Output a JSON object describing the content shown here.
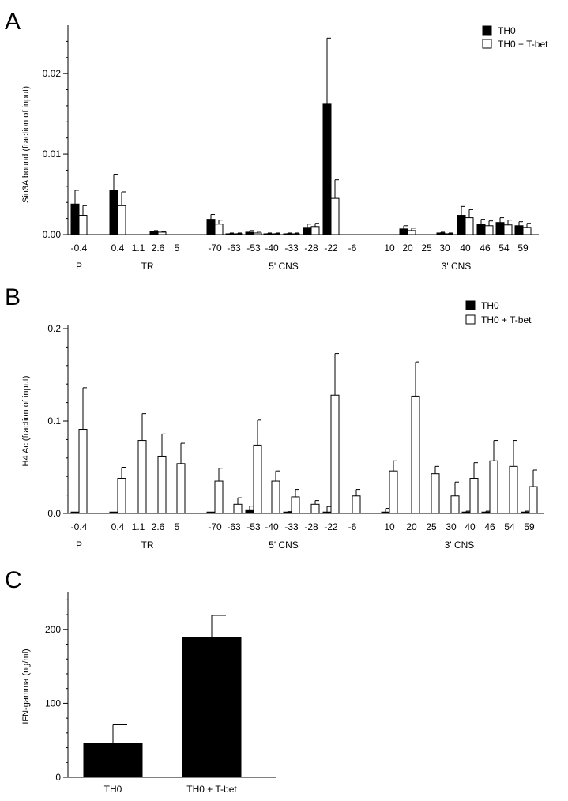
{
  "chart_data": [
    {
      "panel": "A",
      "type": "bar",
      "ylabel": "Sin3A bound (fraction of input)",
      "ylim": [
        0,
        0.026
      ],
      "yticks": [
        0.0,
        0.01,
        0.02
      ],
      "ytick_labels": [
        "0.00",
        "0.01",
        "0.02"
      ],
      "legend_position": "top-right",
      "series": [
        {
          "name": "TH0",
          "color": "#000000"
        },
        {
          "name": "TH0 + T-bet",
          "color": "#ffffff"
        }
      ],
      "categories": [
        "-0.4",
        "0.4",
        "1.1",
        "2.6",
        "5",
        "-70",
        "-63",
        "-53",
        "-40",
        "-33",
        "-28",
        "-22",
        "-6",
        "10",
        "20",
        "25",
        "30",
        "40",
        "46",
        "54",
        "59"
      ],
      "values": [
        [
          0.0038,
          0.0024
        ],
        [
          0.0055,
          0.0036
        ],
        null,
        [
          0.0004,
          0.0003
        ],
        null,
        [
          0.0019,
          0.0013
        ],
        [
          0.0001,
          0.0001
        ],
        [
          0.0003,
          0.0002
        ],
        [
          0.0001,
          0.0001
        ],
        [
          0.0001,
          0.0001
        ],
        [
          0.0009,
          0.001
        ],
        [
          0.0162,
          0.0045
        ],
        null,
        null,
        [
          0.0007,
          0.0005
        ],
        null,
        [
          0.0002,
          0.0001
        ],
        [
          0.0024,
          0.0021
        ],
        [
          0.0013,
          0.0011
        ],
        [
          0.0015,
          0.0012
        ],
        [
          0.0011,
          0.0009
        ]
      ],
      "errors": [
        [
          0.0017,
          0.0012
        ],
        [
          0.002,
          0.0017
        ],
        null,
        [
          0.0001,
          0.0001
        ],
        null,
        [
          0.0006,
          0.0005
        ],
        [
          0.0001,
          0.0001
        ],
        [
          0.0002,
          0.0002
        ],
        [
          0.0001,
          0.0001
        ],
        [
          0.0001,
          0.0001
        ],
        [
          0.0004,
          0.0004
        ],
        [
          0.0082,
          0.0023
        ],
        null,
        null,
        [
          0.0004,
          0.0003
        ],
        null,
        [
          0.0001,
          0.0001
        ],
        [
          0.0011,
          0.001
        ],
        [
          0.0006,
          0.0006
        ],
        [
          0.0006,
          0.0006
        ],
        [
          0.0005,
          0.0005
        ]
      ],
      "groups": [
        {
          "label": "P",
          "first": 0,
          "last": 0
        },
        {
          "label": "TR",
          "first": 1,
          "last": 4
        },
        {
          "label": "5' CNS",
          "first": 5,
          "last": 12
        },
        {
          "label": "3' CNS",
          "first": 13,
          "last": 20
        }
      ]
    },
    {
      "panel": "B",
      "type": "bar",
      "ylabel": "H4 Ac (fraction of input)",
      "ylim": [
        0,
        0.2
      ],
      "yticks": [
        0.0,
        0.1,
        0.2
      ],
      "ytick_labels": [
        "0.0",
        "0.1",
        "0.2"
      ],
      "legend_position": "top-right",
      "series": [
        {
          "name": "TH0",
          "color": "#000000"
        },
        {
          "name": "TH0 + T-bet",
          "color": "#ffffff"
        }
      ],
      "categories": [
        "-0.4",
        "0.4",
        "1.1",
        "2.6",
        "5",
        "-70",
        "-63",
        "-53",
        "-40",
        "-33",
        "-28",
        "-22",
        "-6",
        "10",
        "20",
        "25",
        "30",
        "40",
        "46",
        "54",
        "59"
      ],
      "values": [
        [
          0.0015,
          0.091
        ],
        [
          0.0015,
          0.038
        ],
        [
          0,
          0.079
        ],
        [
          0,
          0.062
        ],
        [
          0,
          0.054
        ],
        [
          0.0015,
          0.035
        ],
        [
          0,
          0.01
        ],
        [
          0.004,
          0.074
        ],
        [
          0,
          0.035
        ],
        [
          0.0015,
          0.018
        ],
        [
          0,
          0.01
        ],
        [
          0.0015,
          0.128
        ],
        [
          0,
          0.019
        ],
        [
          0.0015,
          0.046
        ],
        [
          0,
          0.127
        ],
        [
          0,
          0.043
        ],
        [
          0,
          0.019
        ],
        [
          0.0015,
          0.038
        ],
        [
          0.0015,
          0.057
        ],
        [
          0,
          0.051
        ],
        [
          0.0015,
          0.029
        ]
      ],
      "errors": [
        [
          0,
          0.045
        ],
        [
          0,
          0.012
        ],
        [
          0,
          0.029
        ],
        [
          0,
          0.024
        ],
        [
          0,
          0.022
        ],
        [
          0,
          0.014
        ],
        [
          0,
          0.007
        ],
        [
          0.004,
          0.027
        ],
        [
          0,
          0.011
        ],
        [
          0.0005,
          0.008
        ],
        [
          0,
          0.004
        ],
        [
          0.006,
          0.045
        ],
        [
          0,
          0.007
        ],
        [
          0.004,
          0.011
        ],
        [
          0,
          0.037
        ],
        [
          0,
          0.008
        ],
        [
          0,
          0.015
        ],
        [
          0.001,
          0.017
        ],
        [
          0.001,
          0.022
        ],
        [
          0,
          0.028
        ],
        [
          0.001,
          0.018
        ]
      ],
      "groups": [
        {
          "label": "P",
          "first": 0,
          "last": 0
        },
        {
          "label": "TR",
          "first": 1,
          "last": 4
        },
        {
          "label": "5' CNS",
          "first": 5,
          "last": 12
        },
        {
          "label": "3' CNS",
          "first": 13,
          "last": 20
        }
      ]
    },
    {
      "panel": "C",
      "type": "bar",
      "ylabel": "IFN-gamma (ng/ml)",
      "ylim": [
        0,
        250
      ],
      "yticks": [
        0,
        100,
        200
      ],
      "ytick_labels": [
        "0",
        "100",
        "200"
      ],
      "categories": [
        "TH0",
        "TH0 + T-bet"
      ],
      "values": [
        46,
        189
      ],
      "errors": [
        25,
        30
      ],
      "bar_color": "#000000"
    }
  ]
}
